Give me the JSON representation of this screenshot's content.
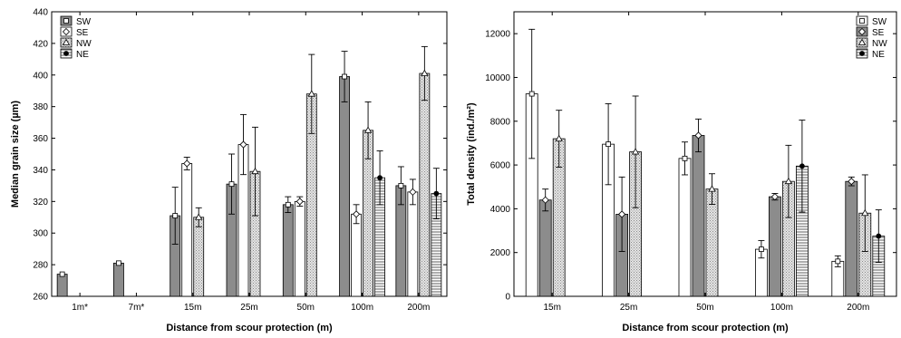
{
  "chart_data": [
    {
      "type": "bar",
      "xlabel": "Distance from scour protection (m)",
      "ylabel": "Median grain size (µm)",
      "ylim": [
        260,
        440
      ],
      "yticks": [
        260,
        280,
        300,
        320,
        340,
        360,
        380,
        400,
        420,
        440
      ],
      "legend_position": "top-left",
      "categories": [
        "1m*",
        "7m*",
        "15m",
        "25m",
        "50m",
        "100m",
        "200m"
      ],
      "series": [
        {
          "name": "SW",
          "fill": "grey",
          "marker": "square",
          "values": [
            274,
            281,
            311,
            331,
            318,
            399,
            330
          ],
          "err": [
            0,
            0,
            18,
            19,
            5,
            16,
            12
          ]
        },
        {
          "name": "SE",
          "fill": "white",
          "marker": "diamond",
          "values": [
            null,
            null,
            344,
            356,
            320,
            312,
            326
          ],
          "err": [
            0,
            0,
            4,
            19,
            3,
            6,
            8
          ]
        },
        {
          "name": "NW",
          "fill": "dots",
          "marker": "triangle",
          "values": [
            null,
            null,
            310,
            339,
            388,
            365,
            401
          ],
          "err": [
            0,
            0,
            6,
            28,
            25,
            18,
            17
          ]
        },
        {
          "name": "NE",
          "fill": "hlines",
          "marker": "circle",
          "values": [
            null,
            null,
            null,
            null,
            null,
            335,
            325
          ],
          "err": [
            0,
            0,
            0,
            0,
            0,
            17,
            16
          ]
        }
      ]
    },
    {
      "type": "bar",
      "xlabel": "Distance from scour protection (m)",
      "ylabel": "Total density (ind./m²)",
      "ylim": [
        0,
        13000
      ],
      "yticks": [
        0,
        2000,
        4000,
        6000,
        8000,
        10000,
        12000
      ],
      "legend_position": "top-right",
      "categories": [
        "15m",
        "25m",
        "50m",
        "100m",
        "200m"
      ],
      "series": [
        {
          "name": "SW",
          "fill": "white",
          "marker": "square",
          "values": [
            9250,
            6950,
            6300,
            2150,
            1600
          ],
          "err": [
            2950,
            1850,
            750,
            400,
            250
          ]
        },
        {
          "name": "SE",
          "fill": "grey",
          "marker": "diamond",
          "values": [
            4400,
            3750,
            7350,
            4550,
            5250
          ],
          "err": [
            500,
            1700,
            750,
            150,
            200
          ]
        },
        {
          "name": "NW",
          "fill": "dots",
          "marker": "triangle",
          "values": [
            7200,
            6600,
            4900,
            5250,
            3800
          ],
          "err": [
            1300,
            2550,
            700,
            1650,
            1750
          ]
        },
        {
          "name": "NE",
          "fill": "hlines",
          "marker": "circle",
          "values": [
            null,
            null,
            null,
            5950,
            2750
          ],
          "err": [
            0,
            0,
            0,
            2100,
            1200
          ]
        }
      ]
    }
  ]
}
